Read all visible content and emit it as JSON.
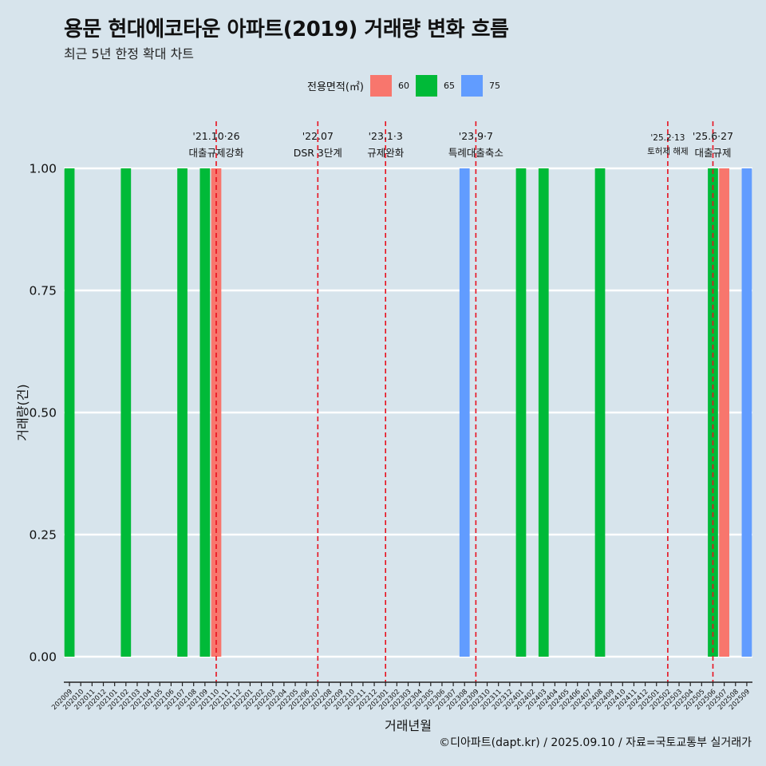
{
  "title": "용문 현대에코타운 아파트(2019) 거래량 변화 흐름",
  "subtitle": "최근 5년 한정 확대 차트",
  "caption": "©디아파트(dapt.kr) / 2025.09.10 / 자료=국토교통부 실거래가",
  "legend": {
    "title": "전용면적(㎡)",
    "items": [
      {
        "label": "60",
        "color": "#F8766D"
      },
      {
        "label": "65",
        "color": "#00BA38"
      },
      {
        "label": "75",
        "color": "#619CFF"
      }
    ]
  },
  "chart_data": {
    "type": "bar",
    "xlabel": "거래년월",
    "ylabel": "거래량(건)",
    "ylim": [
      0,
      1
    ],
    "yticks": [
      "0.00",
      "0.25",
      "0.50",
      "0.75",
      "1.00"
    ],
    "categories": [
      "202009",
      "202010",
      "202011",
      "202012",
      "202101",
      "202102",
      "202103",
      "202104",
      "202105",
      "202106",
      "202107",
      "202108",
      "202109",
      "202110",
      "202111",
      "202112",
      "202201",
      "202202",
      "202203",
      "202204",
      "202205",
      "202206",
      "202207",
      "202208",
      "202209",
      "202210",
      "202211",
      "202212",
      "202301",
      "202302",
      "202303",
      "202304",
      "202305",
      "202306",
      "202307",
      "202308",
      "202309",
      "202310",
      "202311",
      "202312",
      "202401",
      "202402",
      "202403",
      "202404",
      "202405",
      "202406",
      "202407",
      "202408",
      "202409",
      "202410",
      "202411",
      "202412",
      "202501",
      "202502",
      "202503",
      "202504",
      "202505",
      "202506",
      "202507",
      "202508",
      "202509"
    ],
    "bars": [
      {
        "month": "202009",
        "area": "65",
        "value": 1
      },
      {
        "month": "202102",
        "area": "65",
        "value": 1
      },
      {
        "month": "202107",
        "area": "65",
        "value": 1
      },
      {
        "month": "202109",
        "area": "65",
        "value": 1
      },
      {
        "month": "202110",
        "area": "60",
        "value": 1
      },
      {
        "month": "202308",
        "area": "75",
        "value": 1
      },
      {
        "month": "202401",
        "area": "65",
        "value": 1
      },
      {
        "month": "202403",
        "area": "65",
        "value": 1
      },
      {
        "month": "202408",
        "area": "65",
        "value": 1
      },
      {
        "month": "202506",
        "area": "65",
        "value": 1
      },
      {
        "month": "202507",
        "area": "60",
        "value": 1
      },
      {
        "month": "202509",
        "area": "75",
        "value": 1
      }
    ],
    "events": [
      {
        "month": "202110",
        "date": "'21.10·26",
        "label": "대출규제강화",
        "small": false
      },
      {
        "month": "202207",
        "date": "'22.07",
        "label": "DSR 3단계",
        "small": false
      },
      {
        "month": "202301",
        "date": "'23.1·3",
        "label": "규제완화",
        "small": false
      },
      {
        "month": "202309",
        "date": "'23.9·7",
        "label": "특례대출축소",
        "small": false
      },
      {
        "month": "202502",
        "date": "'25.2·13",
        "label": "토허제 해제",
        "small": true
      },
      {
        "month": "202506",
        "date": "'25.6·27",
        "label": "대출규제",
        "small": false
      }
    ]
  }
}
